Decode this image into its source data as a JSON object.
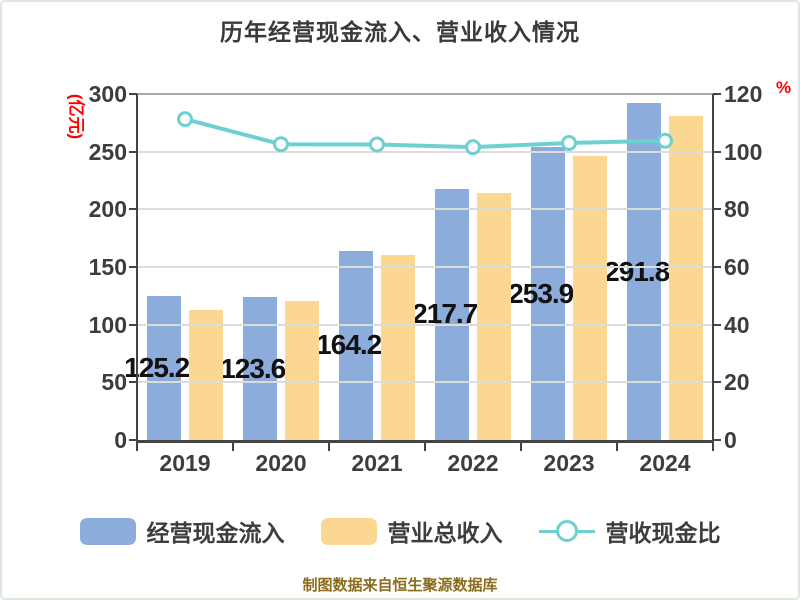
{
  "title": "历年经营现金流入、营业收入情况",
  "footer": "制图数据来自恒生聚源数据库",
  "colors": {
    "bar_blue": "#8CACDC",
    "bar_orange": "#FCD792",
    "line_cyan": "#6FD0D2",
    "marker_fill": "#FFFFFF",
    "axis_text": "#3D3D3D",
    "unit_red": "#FF0000",
    "value_label": "#111111",
    "footer_gold": "#8A6D1E",
    "gridline": "#DCDCDC",
    "axis_line": "#444444"
  },
  "left_axis": {
    "unit": "(亿元)",
    "min": 0,
    "max": 300,
    "step": 50,
    "ticks": [
      "0",
      "50",
      "100",
      "150",
      "200",
      "250",
      "300"
    ]
  },
  "right_axis": {
    "unit": "%",
    "min": 0,
    "max": 120,
    "step": 20,
    "ticks": [
      "0",
      "20",
      "40",
      "60",
      "80",
      "100",
      "120"
    ]
  },
  "chart_data": {
    "type": "bar",
    "subtype": "grouped-bars-with-line",
    "title": "历年经营现金流入、营业收入情况",
    "categories": [
      "2019",
      "2020",
      "2021",
      "2022",
      "2023",
      "2024"
    ],
    "series": [
      {
        "name": "经营现金流入",
        "type": "bar",
        "axis": "left",
        "color": "#8CACDC",
        "values": [
          125.2,
          123.67,
          164.25,
          217.7,
          253.91,
          291.87
        ],
        "labels": [
          "125.20",
          "123.67",
          "164.25",
          "217.70",
          "253.91",
          "291.87"
        ]
      },
      {
        "name": "营业总收入",
        "type": "bar",
        "axis": "left",
        "color": "#FCD792",
        "values": [
          112.5,
          120.5,
          160.3,
          214.2,
          246.5,
          281.3
        ]
      },
      {
        "name": "营收现金比",
        "type": "line",
        "axis": "right",
        "color": "#6FD0D2",
        "values": [
          111.3,
          102.6,
          102.5,
          101.6,
          103.0,
          103.8
        ]
      }
    ],
    "ylim_left": [
      0,
      300
    ],
    "ylim_right": [
      0,
      120
    ],
    "grid": true,
    "legend_position": "bottom"
  }
}
